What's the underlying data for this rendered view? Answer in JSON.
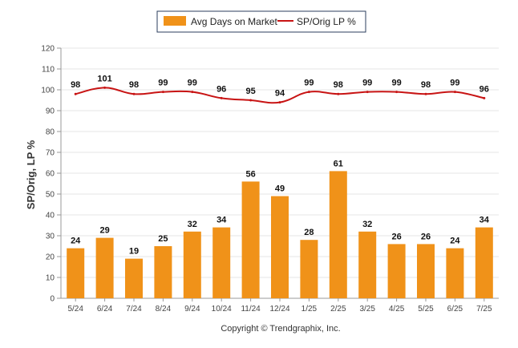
{
  "chart_data": {
    "type": "bar",
    "categories": [
      "5/24",
      "6/24",
      "7/24",
      "8/24",
      "9/24",
      "10/24",
      "11/24",
      "12/24",
      "1/25",
      "2/25",
      "3/25",
      "4/25",
      "5/25",
      "6/25",
      "7/25"
    ],
    "series": [
      {
        "name": "Avg Days on Market",
        "type": "bar",
        "color": "#F09219",
        "values": [
          24,
          29,
          19,
          25,
          32,
          34,
          56,
          49,
          28,
          61,
          32,
          26,
          26,
          24,
          34
        ]
      },
      {
        "name": "SP/Orig LP %",
        "type": "line",
        "color": "#C81414",
        "values": [
          98,
          101,
          98,
          99,
          99,
          96,
          95,
          94,
          99,
          98,
          99,
          99,
          98,
          99,
          96
        ]
      }
    ],
    "ylabel": "SP/Orig, LP %",
    "ylim": [
      0,
      120
    ],
    "yticks": [
      0,
      10,
      20,
      30,
      40,
      50,
      60,
      70,
      80,
      90,
      100,
      110,
      120
    ],
    "grid": true,
    "legend_position": "top-center",
    "footer": "Copyright © Trendgraphix, Inc."
  }
}
